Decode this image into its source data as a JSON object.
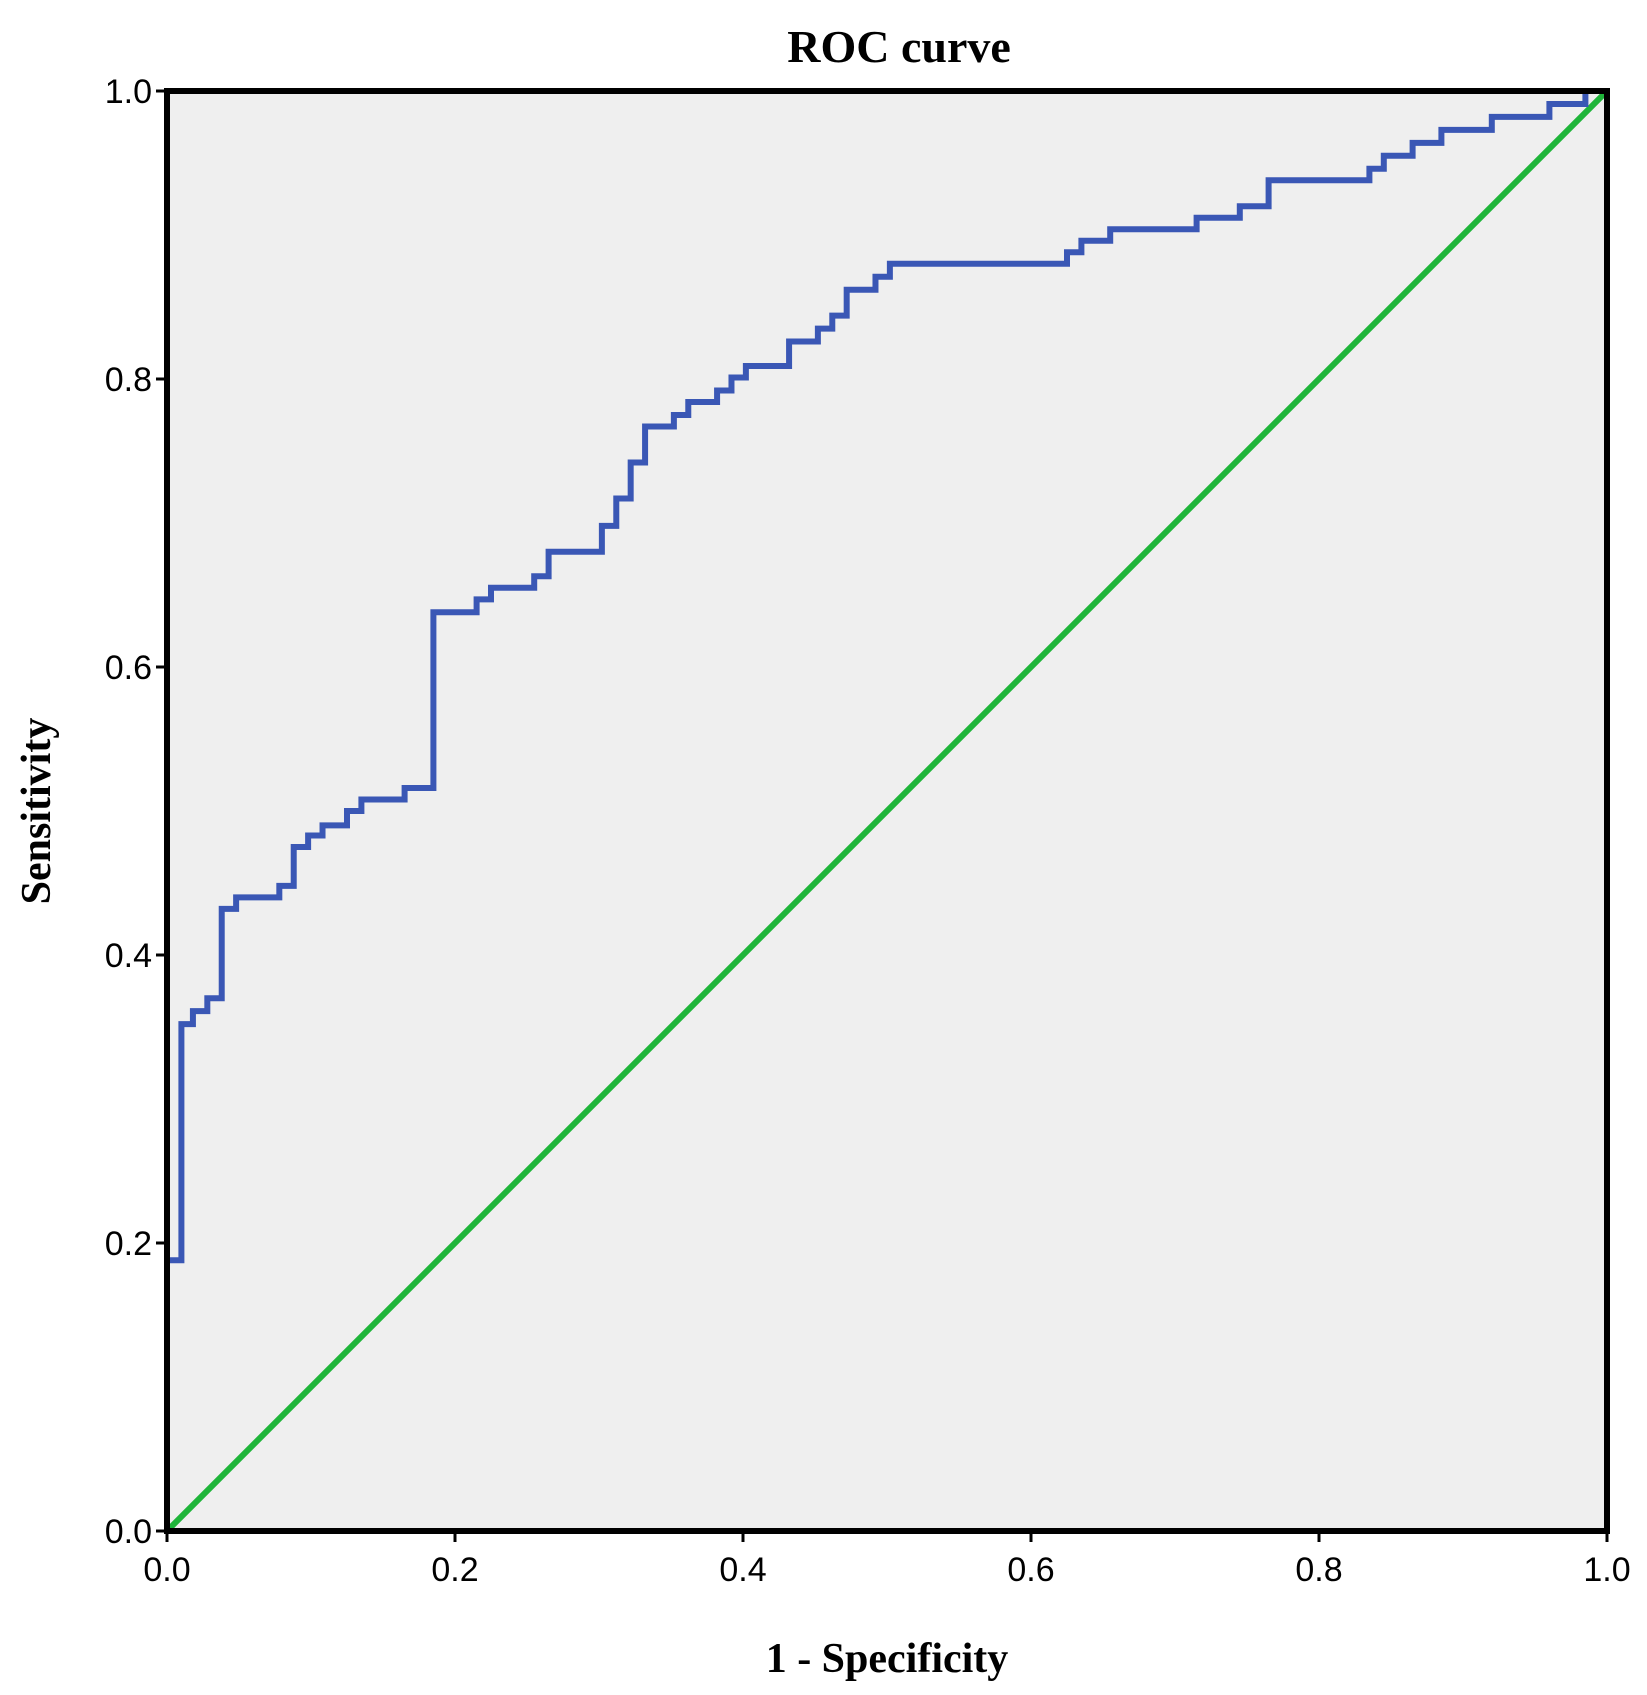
{
  "chart_data": {
    "type": "line",
    "title": "ROC curve",
    "xlabel": "1 - Specificity",
    "ylabel": "Sensitivity",
    "xlim": [
      0,
      1
    ],
    "ylim": [
      0,
      1
    ],
    "x_ticks": [
      "0.0",
      "0.2",
      "0.4",
      "0.6",
      "0.8",
      "1.0"
    ],
    "y_ticks": [
      "0.0",
      "0.2",
      "0.4",
      "0.6",
      "0.8",
      "1.0"
    ],
    "grid": false,
    "legend": "none",
    "background_color": "#efefef",
    "series": [
      {
        "color": "#3a57b5",
        "step": true,
        "points": [
          [
            0.0,
            0.0
          ],
          [
            0.0,
            0.188
          ],
          [
            0.01,
            0.188
          ],
          [
            0.01,
            0.352
          ],
          [
            0.018,
            0.352
          ],
          [
            0.018,
            0.361
          ],
          [
            0.028,
            0.361
          ],
          [
            0.028,
            0.37
          ],
          [
            0.038,
            0.37
          ],
          [
            0.038,
            0.432
          ],
          [
            0.048,
            0.432
          ],
          [
            0.048,
            0.44
          ],
          [
            0.078,
            0.44
          ],
          [
            0.078,
            0.448
          ],
          [
            0.088,
            0.448
          ],
          [
            0.088,
            0.475
          ],
          [
            0.098,
            0.475
          ],
          [
            0.098,
            0.483
          ],
          [
            0.108,
            0.483
          ],
          [
            0.108,
            0.49
          ],
          [
            0.125,
            0.49
          ],
          [
            0.125,
            0.5
          ],
          [
            0.135,
            0.5
          ],
          [
            0.135,
            0.508
          ],
          [
            0.165,
            0.508
          ],
          [
            0.165,
            0.516
          ],
          [
            0.185,
            0.516
          ],
          [
            0.185,
            0.638
          ],
          [
            0.215,
            0.638
          ],
          [
            0.215,
            0.647
          ],
          [
            0.225,
            0.647
          ],
          [
            0.225,
            0.655
          ],
          [
            0.255,
            0.655
          ],
          [
            0.255,
            0.663
          ],
          [
            0.265,
            0.663
          ],
          [
            0.265,
            0.68
          ],
          [
            0.302,
            0.68
          ],
          [
            0.302,
            0.698
          ],
          [
            0.312,
            0.698
          ],
          [
            0.312,
            0.717
          ],
          [
            0.322,
            0.717
          ],
          [
            0.322,
            0.742
          ],
          [
            0.332,
            0.742
          ],
          [
            0.332,
            0.767
          ],
          [
            0.352,
            0.767
          ],
          [
            0.352,
            0.775
          ],
          [
            0.362,
            0.775
          ],
          [
            0.362,
            0.784
          ],
          [
            0.382,
            0.784
          ],
          [
            0.382,
            0.792
          ],
          [
            0.392,
            0.792
          ],
          [
            0.392,
            0.801
          ],
          [
            0.402,
            0.801
          ],
          [
            0.402,
            0.809
          ],
          [
            0.432,
            0.809
          ],
          [
            0.432,
            0.826
          ],
          [
            0.452,
            0.826
          ],
          [
            0.452,
            0.835
          ],
          [
            0.462,
            0.835
          ],
          [
            0.462,
            0.844
          ],
          [
            0.472,
            0.844
          ],
          [
            0.472,
            0.862
          ],
          [
            0.492,
            0.862
          ],
          [
            0.492,
            0.871
          ],
          [
            0.502,
            0.871
          ],
          [
            0.502,
            0.88
          ],
          [
            0.625,
            0.88
          ],
          [
            0.625,
            0.888
          ],
          [
            0.635,
            0.888
          ],
          [
            0.635,
            0.896
          ],
          [
            0.655,
            0.896
          ],
          [
            0.655,
            0.904
          ],
          [
            0.715,
            0.904
          ],
          [
            0.715,
            0.912
          ],
          [
            0.745,
            0.912
          ],
          [
            0.745,
            0.92
          ],
          [
            0.765,
            0.92
          ],
          [
            0.765,
            0.938
          ],
          [
            0.835,
            0.938
          ],
          [
            0.835,
            0.946
          ],
          [
            0.845,
            0.946
          ],
          [
            0.845,
            0.955
          ],
          [
            0.865,
            0.955
          ],
          [
            0.865,
            0.964
          ],
          [
            0.885,
            0.964
          ],
          [
            0.885,
            0.973
          ],
          [
            0.92,
            0.973
          ],
          [
            0.92,
            0.982
          ],
          [
            0.96,
            0.982
          ],
          [
            0.96,
            0.991
          ],
          [
            0.985,
            0.991
          ],
          [
            0.985,
            1.0
          ],
          [
            1.0,
            1.0
          ]
        ]
      },
      {
        "color": "#1fb53a",
        "step": false,
        "points": [
          [
            0,
            0
          ],
          [
            1,
            1
          ]
        ]
      }
    ]
  }
}
